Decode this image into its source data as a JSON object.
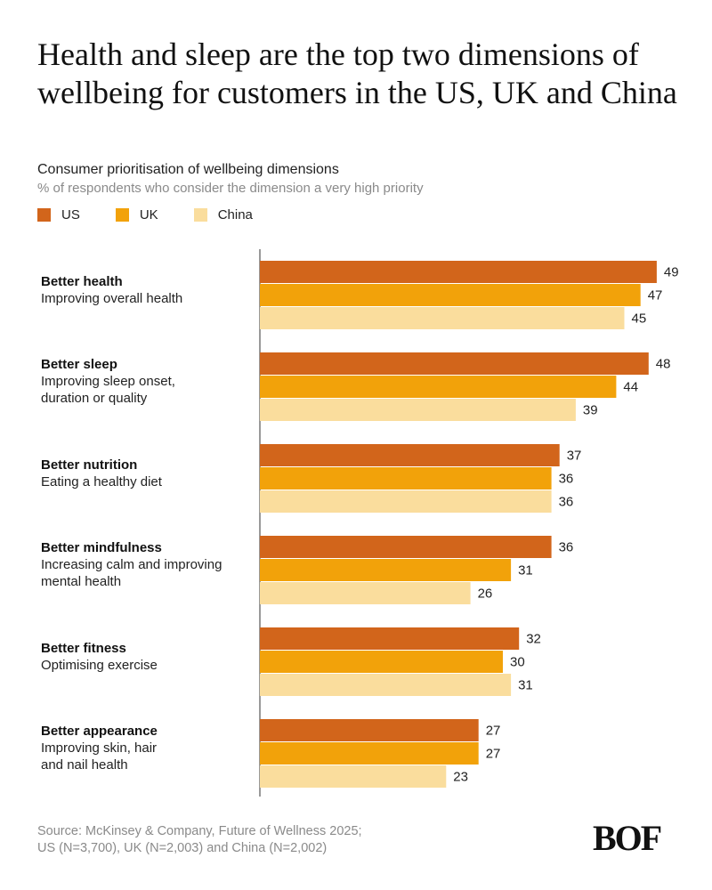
{
  "title": "Health and sleep are the top two dimensions of wellbeing for customers in the US, UK and China",
  "subtitle": "Consumer prioritisation of wellbeing dimensions",
  "note": "% of respondents who consider the dimension a very high priority",
  "colors": {
    "US": "#d2651b",
    "UK": "#f2a20a",
    "China": "#fadd9d"
  },
  "chart_data": {
    "type": "bar",
    "orientation": "horizontal",
    "title": "Health and sleep are the top two dimensions of wellbeing for customers in the US, UK and China",
    "xlabel": "",
    "ylabel": "",
    "xlim": [
      0,
      50
    ],
    "legend": [
      "US",
      "UK",
      "China"
    ],
    "legend_position": "top-left",
    "categories": [
      {
        "name": "Better health",
        "description": [
          "Improving overall health"
        ]
      },
      {
        "name": "Better sleep",
        "description": [
          "Improving sleep onset,",
          "duration or quality"
        ]
      },
      {
        "name": "Better nutrition",
        "description": [
          "Eating a healthy diet"
        ]
      },
      {
        "name": "Better mindfulness",
        "description": [
          "Increasing calm and improving",
          "mental health"
        ]
      },
      {
        "name": "Better fitness",
        "description": [
          "Optimising exercise"
        ]
      },
      {
        "name": "Better appearance",
        "description": [
          "Improving skin, hair",
          "and nail health"
        ]
      }
    ],
    "series": [
      {
        "name": "US",
        "values": [
          49,
          48,
          37,
          36,
          32,
          27
        ]
      },
      {
        "name": "UK",
        "values": [
          47,
          44,
          36,
          31,
          30,
          27
        ]
      },
      {
        "name": "China",
        "values": [
          45,
          39,
          36,
          26,
          31,
          23
        ]
      }
    ]
  },
  "source": [
    "Source: McKinsey & Company, Future of Wellness 2025;",
    "US (N=3,700), UK (N=2,003) and China (N=2,002)"
  ],
  "logo": "BOF"
}
